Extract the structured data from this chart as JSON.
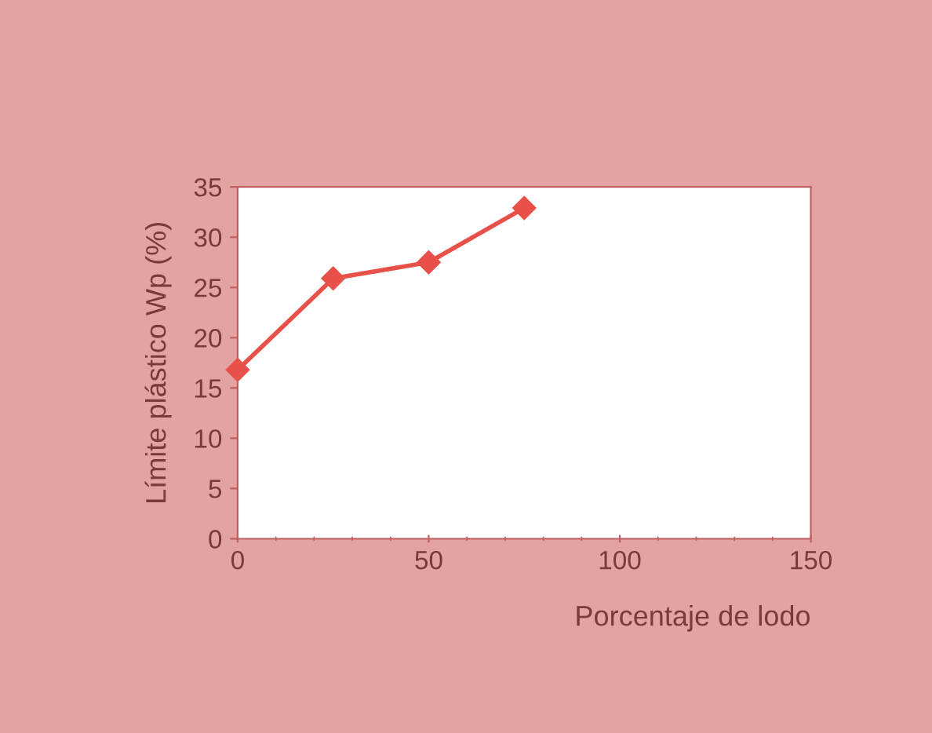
{
  "chart_data": {
    "type": "line",
    "xlabel": "Porcentaje de lodo",
    "ylabel": "Límite plástico Wp (%)",
    "x": [
      0,
      25,
      50,
      75
    ],
    "series": [
      {
        "color": "#e8504a",
        "values": [
          16.8,
          25.9,
          27.5,
          32.9
        ]
      }
    ],
    "xlim": [
      0,
      150
    ],
    "xticks": [
      0,
      50,
      100,
      150
    ],
    "ylim": [
      0,
      35
    ],
    "yticks": [
      0,
      5,
      10,
      15,
      20,
      25,
      30,
      35
    ],
    "marker": "diamond",
    "line_style": "solid",
    "grid": false,
    "legend": false
  }
}
